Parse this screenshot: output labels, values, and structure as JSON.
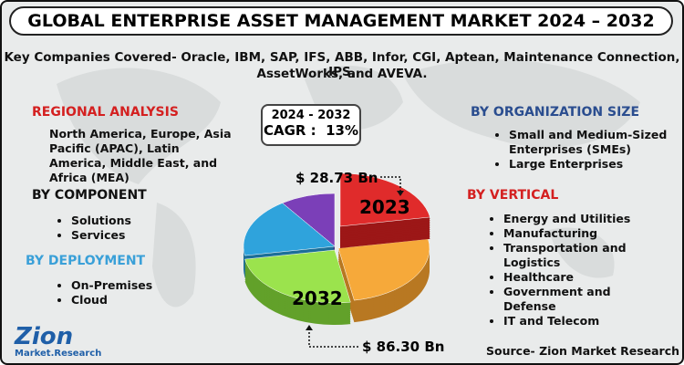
{
  "title": "GLOBAL ENTERPRISE ASSET MANAGEMENT MARKET 2024 – 2032",
  "subtitle": [
    "Key Companies Covered- Oracle, IBM, SAP, IFS, ABB, Infor, CGI, Aptean, Maintenance Connection, IPS,",
    "AssetWorks, and AVEVA."
  ],
  "cagr": {
    "period": "2024 - 2032",
    "label": "CAGR :  13%"
  },
  "market": {
    "start_value": "$ 28.73 Bn",
    "start_year": "2023",
    "end_value": "$ 86.30 Bn",
    "end_year": "2032"
  },
  "regional_analysis": {
    "heading": "REGIONAL ANALYSIS",
    "text": "North America, Europe, Asia Pacific (APAC), Latin America, Middle East, and Africa (MEA)"
  },
  "by_component": {
    "heading": "BY COMPONENT",
    "items": [
      "Solutions",
      "Services"
    ]
  },
  "by_deployment": {
    "heading": "BY DEPLOYMENT",
    "items": [
      "On-Premises",
      "Cloud"
    ]
  },
  "by_organization_size": {
    "heading": "BY ORGANIZATION SIZE",
    "items": [
      "Small and Medium-Sized Enterprises (SMEs)",
      "Large Enterprises"
    ]
  },
  "by_vertical": {
    "heading": "BY VERTICAL",
    "items": [
      "Energy and Utilities",
      "Manufacturing",
      "Transportation and Logistics",
      "Healthcare",
      "Government and Defense",
      "IT and Telecom"
    ]
  },
  "logo": {
    "name": "Zion",
    "tagline": "Market.Research"
  },
  "source": "Source- Zion Market Research"
}
